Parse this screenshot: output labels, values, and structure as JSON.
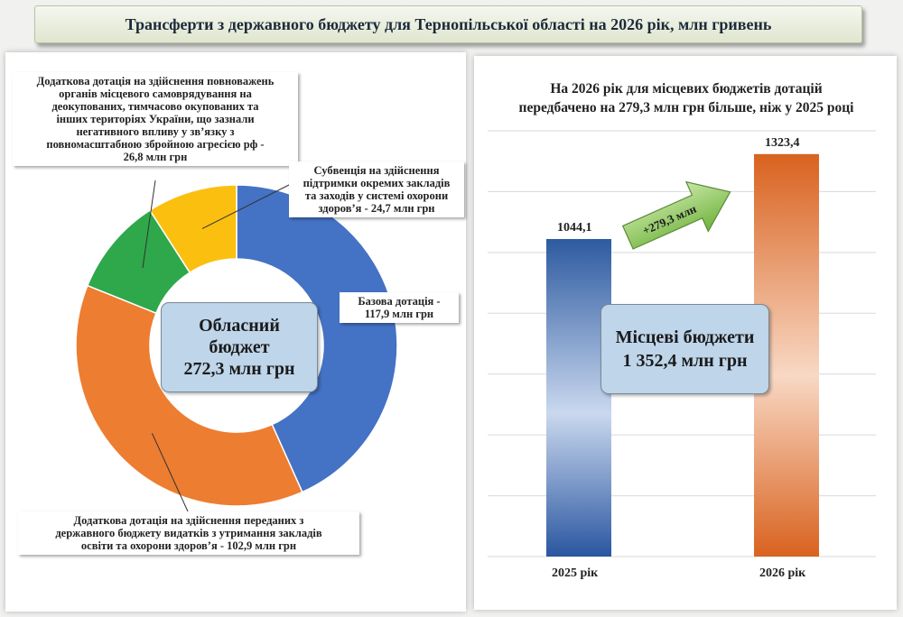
{
  "title": "Трансферти з державного бюджету для Тернопільської області на 2026 рік, млн гривень",
  "colors": {
    "blue": "#4472c4",
    "orange": "#ed7d31",
    "green": "#2ea84a",
    "yellow": "#fbbf0f"
  },
  "chart_data": [
    {
      "type": "pie",
      "style": "donut",
      "center": {
        "line1": "Обласний",
        "line2": "бюджет",
        "line3": "272,3 млн грн"
      },
      "slices": [
        {
          "label_lines": [
            "Базова дотація -",
            "117,9 млн грн"
          ],
          "value": 117.9,
          "color": "#4472c4"
        },
        {
          "label_lines": [
            "Додаткова дотація на здійснення переданих з",
            "державного бюджету видатків з утримання закладів",
            "освіти та охорони здоров’я - 102,9 млн грн"
          ],
          "value": 102.9,
          "color": "#ed7d31"
        },
        {
          "label_lines": [
            "Додаткова дотація на здійснення повноважень",
            "органів місцевого самоврядування на",
            "деокупованих, тимчасово окупованих та",
            "інших територіях України, що зазнали",
            "негативного впливу у зв’язку з",
            "повномасштабною збройною агресією рф -",
            "26,8 млн грн"
          ],
          "value": 26.8,
          "color": "#2ea84a"
        },
        {
          "label_lines": [
            "Субвенція на здійснення",
            "підтримки окремих закладів",
            "та заходів у системі охорони",
            "здоров’я - 24,7 млн грн"
          ],
          "value": 24.7,
          "color": "#fbbf0f"
        }
      ]
    },
    {
      "type": "bar",
      "title_lines": [
        "На 2026 рік для місцевих бюджетів дотацій",
        "передбачено на 279,3 млн грн більше, ніж у 2025 році"
      ],
      "categories": [
        "2025 рік",
        "2026 рік"
      ],
      "values": [
        1044.1,
        1323.4
      ],
      "value_labels": [
        "1044,1",
        "1323,4"
      ],
      "ylim": [
        0,
        1400
      ],
      "grid": true,
      "arrow_label": "+279,3 млн",
      "center": {
        "line1": "Місцеві бюджети",
        "line2": "1 352,4 млн грн"
      }
    }
  ]
}
